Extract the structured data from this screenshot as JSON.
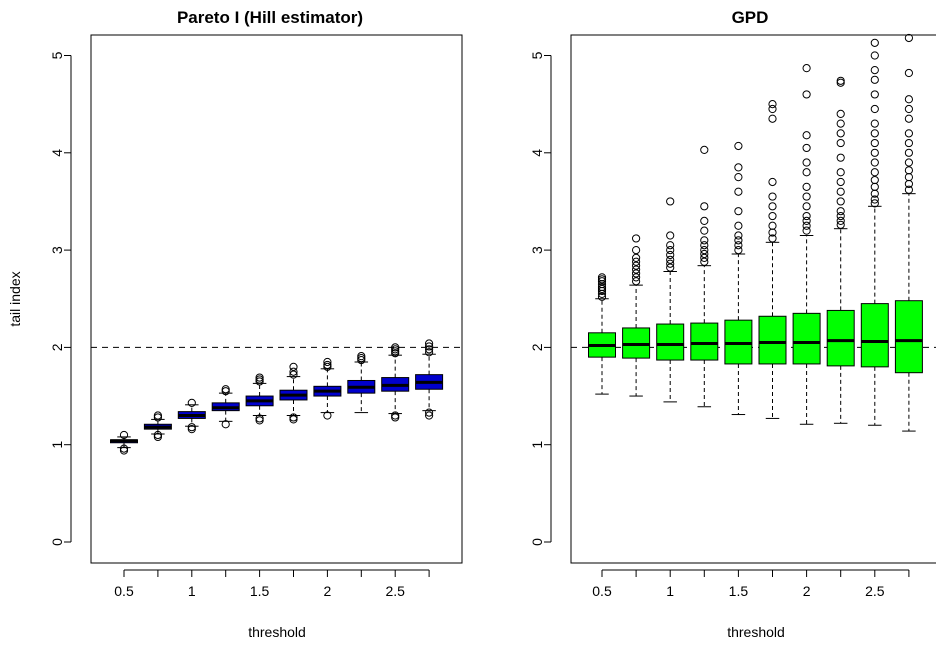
{
  "figure": {
    "ylabel": "tail index",
    "xlabel": "threshold"
  },
  "chart_data": [
    {
      "type": "box",
      "title": "Pareto I (Hill estimator)",
      "xlabel": "threshold",
      "ylabel": "tail index",
      "ylim": [
        -0.25,
        5.2
      ],
      "yticks": [
        0,
        1,
        2,
        3,
        4,
        5
      ],
      "x": [
        0.5,
        0.75,
        1,
        1.25,
        1.5,
        1.75,
        2,
        2.25,
        2.5,
        2.75
      ],
      "xtick_labels": [
        "0.5",
        "",
        "1",
        "",
        "1.5",
        "",
        "2",
        "",
        "2.5",
        ""
      ],
      "reference_line": 2,
      "box_color": "#0000cc",
      "boxes": [
        {
          "whisker_low": 0.97,
          "q1": 1.02,
          "median": 1.04,
          "q3": 1.05,
          "whisker_high": 1.08,
          "outliers": [
            0.94,
            0.96,
            1.1
          ]
        },
        {
          "whisker_low": 1.11,
          "q1": 1.16,
          "median": 1.18,
          "q3": 1.21,
          "whisker_high": 1.26,
          "outliers": [
            1.08,
            1.1,
            1.28,
            1.3
          ]
        },
        {
          "whisker_low": 1.19,
          "q1": 1.27,
          "median": 1.3,
          "q3": 1.34,
          "whisker_high": 1.41,
          "outliers": [
            1.16,
            1.18,
            1.43
          ]
        },
        {
          "whisker_low": 1.24,
          "q1": 1.35,
          "median": 1.38,
          "q3": 1.43,
          "whisker_high": 1.53,
          "outliers": [
            1.21,
            1.55,
            1.57
          ]
        },
        {
          "whisker_low": 1.3,
          "q1": 1.4,
          "median": 1.45,
          "q3": 1.5,
          "whisker_high": 1.63,
          "outliers": [
            1.25,
            1.27,
            1.65,
            1.67,
            1.69
          ]
        },
        {
          "whisker_low": 1.3,
          "q1": 1.46,
          "median": 1.51,
          "q3": 1.56,
          "whisker_high": 1.7,
          "outliers": [
            1.26,
            1.28,
            1.72,
            1.75,
            1.8
          ]
        },
        {
          "whisker_low": 1.33,
          "q1": 1.5,
          "median": 1.55,
          "q3": 1.6,
          "whisker_high": 1.78,
          "outliers": [
            1.3,
            1.8,
            1.82,
            1.85
          ]
        },
        {
          "whisker_low": 1.33,
          "q1": 1.53,
          "median": 1.59,
          "q3": 1.66,
          "whisker_high": 1.85,
          "outliers": [
            1.87,
            1.89,
            1.91
          ]
        },
        {
          "whisker_low": 1.32,
          "q1": 1.55,
          "median": 1.61,
          "q3": 1.69,
          "whisker_high": 1.92,
          "outliers": [
            1.28,
            1.3,
            1.94,
            1.96,
            1.98,
            2.0
          ]
        },
        {
          "whisker_low": 1.35,
          "q1": 1.57,
          "median": 1.64,
          "q3": 1.72,
          "whisker_high": 1.93,
          "outliers": [
            1.3,
            1.33,
            1.95,
            1.98,
            2.01,
            2.04
          ]
        }
      ]
    },
    {
      "type": "box",
      "title": "GPD",
      "xlabel": "threshold",
      "ylabel": "",
      "ylim": [
        -0.25,
        5.2
      ],
      "yticks": [
        0,
        1,
        2,
        3,
        4,
        5
      ],
      "x": [
        0.5,
        0.75,
        1,
        1.25,
        1.5,
        1.75,
        2,
        2.25,
        2.5,
        2.75
      ],
      "xtick_labels": [
        "0.5",
        "",
        "1",
        "",
        "1.5",
        "",
        "2",
        "",
        "2.5",
        ""
      ],
      "reference_line": 2,
      "box_color": "#00ff00",
      "boxes": [
        {
          "whisker_low": 1.52,
          "q1": 1.9,
          "median": 2.02,
          "q3": 2.15,
          "whisker_high": 2.5,
          "outliers": [
            2.52,
            2.55,
            2.58,
            2.6,
            2.62,
            2.65,
            2.68,
            2.7,
            2.72
          ]
        },
        {
          "whisker_low": 1.5,
          "q1": 1.89,
          "median": 2.03,
          "q3": 2.2,
          "whisker_high": 2.64,
          "outliers": [
            2.68,
            2.72,
            2.76,
            2.8,
            2.84,
            2.88,
            2.92,
            3.0,
            3.12
          ]
        },
        {
          "whisker_low": 1.44,
          "q1": 1.87,
          "median": 2.03,
          "q3": 2.24,
          "whisker_high": 2.78,
          "outliers": [
            2.82,
            2.86,
            2.9,
            2.95,
            3.0,
            3.05,
            3.15,
            3.5
          ]
        },
        {
          "whisker_low": 1.39,
          "q1": 1.87,
          "median": 2.04,
          "q3": 2.25,
          "whisker_high": 2.84,
          "outliers": [
            2.88,
            2.92,
            2.96,
            3.0,
            3.05,
            3.1,
            3.2,
            3.3,
            3.45,
            4.03
          ]
        },
        {
          "whisker_low": 1.31,
          "q1": 1.83,
          "median": 2.04,
          "q3": 2.28,
          "whisker_high": 2.96,
          "outliers": [
            3.0,
            3.05,
            3.1,
            3.15,
            3.25,
            3.4,
            3.6,
            3.75,
            3.85,
            4.07
          ]
        },
        {
          "whisker_low": 1.27,
          "q1": 1.83,
          "median": 2.05,
          "q3": 2.32,
          "whisker_high": 3.08,
          "outliers": [
            3.12,
            3.18,
            3.25,
            3.35,
            3.45,
            3.55,
            3.7,
            4.35,
            4.45,
            4.5
          ]
        },
        {
          "whisker_low": 1.21,
          "q1": 1.83,
          "median": 2.05,
          "q3": 2.35,
          "whisker_high": 3.15,
          "outliers": [
            3.2,
            3.25,
            3.3,
            3.35,
            3.45,
            3.55,
            3.65,
            3.8,
            3.9,
            4.05,
            4.18,
            4.6,
            4.87
          ]
        },
        {
          "whisker_low": 1.22,
          "q1": 1.81,
          "median": 2.07,
          "q3": 2.38,
          "whisker_high": 3.22,
          "outliers": [
            3.26,
            3.3,
            3.35,
            3.4,
            3.5,
            3.6,
            3.7,
            3.8,
            3.95,
            4.1,
            4.2,
            4.3,
            4.4,
            4.72,
            4.74
          ]
        },
        {
          "whisker_low": 1.2,
          "q1": 1.8,
          "median": 2.06,
          "q3": 2.45,
          "whisker_high": 3.45,
          "outliers": [
            3.48,
            3.52,
            3.58,
            3.65,
            3.72,
            3.8,
            3.9,
            4.0,
            4.1,
            4.2,
            4.3,
            4.45,
            4.6,
            4.75,
            4.85,
            5.0,
            5.13
          ]
        },
        {
          "whisker_low": 1.14,
          "q1": 1.74,
          "median": 2.07,
          "q3": 2.48,
          "whisker_high": 3.58,
          "outliers": [
            3.62,
            3.68,
            3.75,
            3.82,
            3.9,
            4.0,
            4.1,
            4.2,
            4.35,
            4.45,
            4.55,
            4.82,
            5.18
          ]
        }
      ]
    }
  ]
}
